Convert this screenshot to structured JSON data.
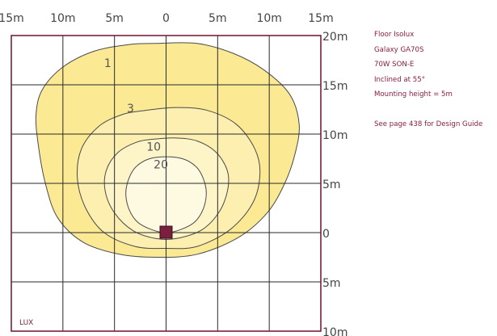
{
  "chart_data": {
    "type": "contour",
    "title": "Floor Isolux",
    "x_ticks": [
      "15m",
      "10m",
      "5m",
      "0",
      "5m",
      "10m",
      "15m"
    ],
    "y_ticks": [
      "20m",
      "15m",
      "10m",
      "5m",
      "0",
      "5m",
      "10m"
    ],
    "x_range_m": [
      -15,
      15
    ],
    "y_range_m": [
      -10,
      20
    ],
    "grid_step_m": 5,
    "grid": true,
    "unit_label": "LUX",
    "luminaire_position_m": [
      0,
      0
    ],
    "contours": [
      {
        "label": "1",
        "lux": 1,
        "fill": "#fbe993",
        "points": [
          [
            -1,
            19.2
          ],
          [
            3,
            19.2
          ],
          [
            6.5,
            18.2
          ],
          [
            9.5,
            16.5
          ],
          [
            12,
            14
          ],
          [
            12.9,
            11
          ],
          [
            12.5,
            8
          ],
          [
            11.5,
            5
          ],
          [
            9.8,
            2
          ],
          [
            7,
            -0.5
          ],
          [
            3,
            -2.2
          ],
          [
            -1,
            -2.5
          ],
          [
            -4.5,
            -2.2
          ],
          [
            -8,
            -1
          ],
          [
            -10.5,
            1.5
          ],
          [
            -11.7,
            5
          ],
          [
            -12.4,
            9
          ],
          [
            -12.6,
            12
          ],
          [
            -12,
            14.5
          ],
          [
            -10,
            16.8
          ],
          [
            -7,
            18.4
          ],
          [
            -3.5,
            19.1
          ]
        ]
      },
      {
        "label": "3",
        "lux": 3,
        "fill": "#fcefb0",
        "points": [
          [
            -2,
            12.4
          ],
          [
            1,
            12.7
          ],
          [
            4,
            12.4
          ],
          [
            6.8,
            11
          ],
          [
            8.6,
            8.5
          ],
          [
            9.1,
            6
          ],
          [
            8.4,
            3
          ],
          [
            6.2,
            0.3
          ],
          [
            3,
            -1.4
          ],
          [
            0,
            -1.6
          ],
          [
            -3,
            -1.4
          ],
          [
            -6,
            0
          ],
          [
            -7.8,
            2.5
          ],
          [
            -8.6,
            5.5
          ],
          [
            -8.2,
            8.5
          ],
          [
            -6.5,
            10.8
          ],
          [
            -4.2,
            12
          ]
        ]
      },
      {
        "label": "10",
        "lux": 10,
        "fill": "#fdf4c8",
        "points": [
          [
            -1,
            9.5
          ],
          [
            1,
            9.6
          ],
          [
            3,
            9.3
          ],
          [
            4.8,
            8.2
          ],
          [
            5.9,
            6.4
          ],
          [
            6,
            4.5
          ],
          [
            5.2,
            2.2
          ],
          [
            3.5,
            0.3
          ],
          [
            1,
            -0.6
          ],
          [
            -1,
            -0.6
          ],
          [
            -3.2,
            0.2
          ],
          [
            -5,
            2
          ],
          [
            -5.9,
            4.2
          ],
          [
            -5.8,
            6.3
          ],
          [
            -4.7,
            8.1
          ],
          [
            -2.8,
            9.2
          ]
        ]
      },
      {
        "label": "20",
        "lux": 20,
        "fill": "#fef9e1",
        "points": [
          [
            0,
            7.7
          ],
          [
            1.6,
            7.5
          ],
          [
            2.9,
            6.7
          ],
          [
            3.6,
            5.5
          ],
          [
            3.9,
            4
          ],
          [
            3.6,
            2.4
          ],
          [
            2.8,
            1.1
          ],
          [
            1.4,
            0.3
          ],
          [
            0,
            0
          ],
          [
            -1.4,
            0.3
          ],
          [
            -2.8,
            1.1
          ],
          [
            -3.6,
            2.4
          ],
          [
            -3.9,
            4
          ],
          [
            -3.6,
            5.5
          ],
          [
            -2.9,
            6.7
          ],
          [
            -1.6,
            7.5
          ]
        ]
      }
    ],
    "contour_labels": [
      {
        "text": "1",
        "x": -6,
        "y": 16.8
      },
      {
        "text": "3",
        "x": -3.8,
        "y": 12.2
      },
      {
        "text": "10",
        "x": -1.9,
        "y": 8.3
      },
      {
        "text": "20",
        "x": -1.2,
        "y": 6.5
      }
    ]
  },
  "info": {
    "lines": [
      "Floor Isolux",
      "Galaxy GA70S",
      "70W SON-E",
      "Inclined at 55°",
      "Mounting height = 5m"
    ],
    "note": "See page 438 for Design Guide"
  },
  "colors": {
    "frame": "#7a1f3d",
    "grid": "#2a2a2a",
    "contour_line": "#4a4a4a",
    "luminaire": "#7a1f3d",
    "info_text": "#8b1e3f"
  }
}
